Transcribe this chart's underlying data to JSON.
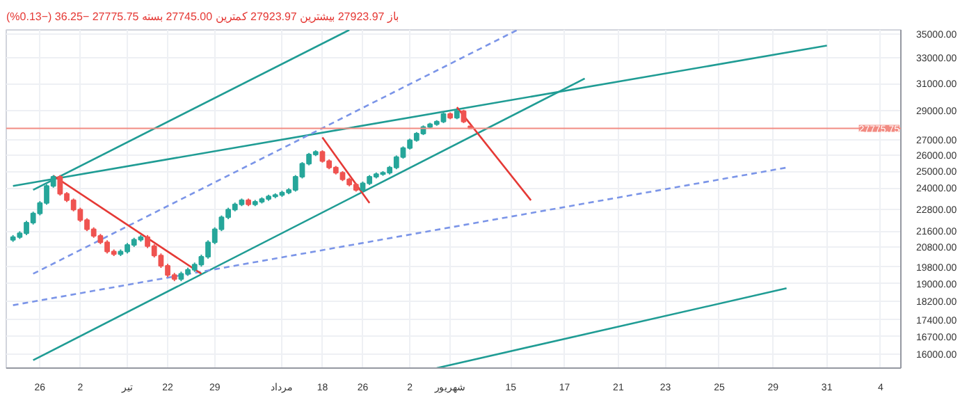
{
  "chart_data": {
    "type": "candlestick",
    "annotations": [
      "باز 27923.97 بیشترین 27923.97 کمترین 27745.00 بسته 27775.75 −36.25 (−0.13%)"
    ],
    "categories": [
      null,
      null,
      null,
      null,
      "26",
      null,
      null,
      null,
      null,
      null,
      "2",
      null,
      null,
      null,
      null,
      null,
      null,
      "تیر",
      null,
      null,
      null,
      null,
      null,
      "22",
      null,
      null,
      null,
      null,
      null,
      null,
      "29",
      null,
      null,
      null,
      null,
      null,
      null,
      null,
      null,
      null,
      "مرداد",
      null,
      null,
      null,
      null,
      null,
      "18",
      null,
      null,
      null,
      null,
      null,
      "26",
      null,
      null,
      null,
      null,
      null,
      null,
      "2",
      null,
      null,
      null,
      null,
      null,
      "شهریور",
      null,
      null,
      null,
      null,
      null,
      null,
      null,
      null,
      "15",
      null,
      null,
      null,
      null,
      null,
      null,
      null,
      "17",
      null,
      null,
      null,
      null,
      null,
      null,
      null,
      "21",
      null,
      null,
      null,
      null,
      null,
      null,
      "23",
      null,
      null,
      null,
      null,
      null,
      null,
      null,
      "25",
      null,
      null,
      null,
      null,
      null,
      null,
      null,
      "29",
      null,
      null,
      null,
      null,
      null,
      null,
      null,
      "31",
      null,
      null,
      null,
      null,
      null,
      null,
      null,
      "4",
      null,
      null
    ],
    "ohlc": [
      [
        21150,
        21400,
        21050,
        21300
      ],
      [
        21300,
        21600,
        21200,
        21500
      ],
      [
        21500,
        22160,
        21400,
        22060
      ],
      [
        22060,
        22660,
        21960,
        22560
      ],
      [
        22560,
        23250,
        22460,
        23150
      ],
      [
        23150,
        24230,
        23050,
        24130
      ],
      [
        24130,
        24780,
        24030,
        24680
      ],
      [
        24680,
        24780,
        23570,
        23670
      ],
      [
        23670,
        23770,
        23200,
        23300
      ],
      [
        23300,
        23400,
        22680,
        22780
      ],
      [
        22780,
        22880,
        22100,
        22200
      ],
      [
        22200,
        22300,
        21610,
        21710
      ],
      [
        21710,
        21810,
        21260,
        21360
      ],
      [
        21360,
        21460,
        20930,
        21030
      ],
      [
        21030,
        21130,
        20460,
        20560
      ],
      [
        20560,
        20660,
        20330,
        20430
      ],
      [
        20430,
        20660,
        20330,
        20560
      ],
      [
        20560,
        20990,
        20460,
        20890
      ],
      [
        20890,
        21260,
        20790,
        21160
      ],
      [
        21160,
        21400,
        21060,
        21300
      ],
      [
        21300,
        21400,
        20730,
        20830
      ],
      [
        20830,
        20930,
        20260,
        20360
      ],
      [
        20360,
        20460,
        19750,
        19850
      ],
      [
        19850,
        19950,
        19310,
        19410
      ],
      [
        19410,
        19510,
        19120,
        19220
      ],
      [
        19220,
        19570,
        19120,
        19470
      ],
      [
        19470,
        19760,
        19370,
        19660
      ],
      [
        19660,
        20010,
        19560,
        19910
      ],
      [
        19910,
        20400,
        19810,
        20300
      ],
      [
        20300,
        21130,
        20200,
        21030
      ],
      [
        21030,
        21810,
        20930,
        21710
      ],
      [
        21710,
        22450,
        21610,
        22350
      ],
      [
        22350,
        22880,
        22250,
        22780
      ],
      [
        22780,
        23170,
        22680,
        23070
      ],
      [
        23070,
        23400,
        22970,
        23300
      ],
      [
        23300,
        23400,
        22970,
        23070
      ],
      [
        23070,
        23320,
        22970,
        23220
      ],
      [
        23220,
        23470,
        23120,
        23370
      ],
      [
        23370,
        23620,
        23270,
        23520
      ],
      [
        23520,
        23700,
        23420,
        23600
      ],
      [
        23600,
        23850,
        23500,
        23750
      ],
      [
        23750,
        24000,
        23650,
        23900
      ],
      [
        23900,
        24780,
        23800,
        24680
      ],
      [
        24680,
        25580,
        24580,
        25480
      ],
      [
        25480,
        26160,
        25380,
        26060
      ],
      [
        26060,
        26330,
        25960,
        26230
      ],
      [
        26230,
        26330,
        25550,
        25650
      ],
      [
        25650,
        25750,
        25140,
        25240
      ],
      [
        25240,
        25340,
        24820,
        24920
      ],
      [
        24920,
        25020,
        24420,
        24520
      ],
      [
        24520,
        24620,
        24110,
        24210
      ],
      [
        24210,
        24310,
        23800,
        23900
      ],
      [
        23900,
        24390,
        23800,
        24290
      ],
      [
        24290,
        24780,
        24190,
        24680
      ],
      [
        24680,
        24940,
        24580,
        24840
      ],
      [
        24840,
        25020,
        24740,
        24920
      ],
      [
        24920,
        25340,
        24820,
        25240
      ],
      [
        25240,
        26000,
        25140,
        25900
      ],
      [
        25900,
        26580,
        25800,
        26480
      ],
      [
        26480,
        27090,
        26380,
        26990
      ],
      [
        26990,
        27530,
        26890,
        27430
      ],
      [
        27430,
        27980,
        27330,
        27880
      ],
      [
        27880,
        28160,
        27780,
        28060
      ],
      [
        28060,
        28340,
        27960,
        28240
      ],
      [
        28240,
        28880,
        28140,
        28780
      ],
      [
        28780,
        28880,
        28410,
        28510
      ],
      [
        28510,
        29070,
        28410,
        28970
      ],
      [
        28970,
        29070,
        28140,
        28240
      ],
      [
        27923.97,
        27923.97,
        27745,
        27775.75
      ],
      null,
      null,
      null,
      null,
      null,
      null,
      null,
      null,
      null,
      null,
      null,
      null,
      null,
      null,
      null,
      null,
      null,
      null,
      null,
      null,
      null,
      null,
      null,
      null,
      null,
      null,
      null,
      null,
      null,
      null,
      null,
      null,
      null,
      null,
      null,
      null,
      null,
      null,
      null,
      null,
      null,
      null,
      null,
      null,
      null,
      null,
      null,
      null,
      null,
      null,
      null,
      null,
      null,
      null,
      null,
      null,
      null,
      null,
      null,
      null,
      null,
      null,
      null
    ],
    "colors": [
      "#26a69a",
      "#26a69a",
      "#26a69a",
      "#26a69a",
      "#26a69a",
      "#26a69a",
      "#26a69a",
      "#ef5350",
      "#ef5350",
      "#ef5350",
      "#ef5350",
      "#ef5350",
      "#ef5350",
      "#ef5350",
      "#ef5350",
      "#ef5350",
      "#26a69a",
      "#26a69a",
      "#26a69a",
      "#26a69a",
      "#ef5350",
      "#ef5350",
      "#ef5350",
      "#ef5350",
      "#ef5350",
      "#26a69a",
      "#26a69a",
      "#26a69a",
      "#26a69a",
      "#26a69a",
      "#26a69a",
      "#26a69a",
      "#26a69a",
      "#26a69a",
      "#26a69a",
      "#ef5350",
      "#26a69a",
      "#26a69a",
      "#26a69a",
      "#26a69a",
      "#26a69a",
      "#26a69a",
      "#26a69a",
      "#26a69a",
      "#26a69a",
      "#26a69a",
      "#ef5350",
      "#ef5350",
      "#ef5350",
      "#ef5350",
      "#ef5350",
      "#ef5350",
      "#26a69a",
      "#26a69a",
      "#26a69a",
      "#26a69a",
      "#26a69a",
      "#26a69a",
      "#26a69a",
      "#26a69a",
      "#26a69a",
      "#26a69a",
      "#26a69a",
      "#26a69a",
      "#26a69a",
      "#ef5350",
      "#26a69a",
      "#ef5350",
      "#ef5350",
      null,
      null,
      null,
      null,
      null,
      null,
      null,
      null,
      null,
      null,
      null,
      null,
      null,
      null,
      null,
      null,
      null,
      null,
      null,
      null,
      null,
      null,
      null,
      null,
      null,
      null,
      null,
      null,
      null,
      null,
      null,
      null,
      null,
      null,
      null,
      null,
      null,
      null,
      null,
      null,
      null,
      null,
      null,
      null,
      null,
      null,
      null,
      null,
      null,
      null,
      null,
      null,
      null,
      null,
      null,
      null,
      null,
      null,
      null,
      null,
      null,
      null,
      null
    ],
    "series": [
      {
        "type": "line",
        "color": "#1f9c94",
        "line_style": "solid",
        "values": [
          24130,
          null,
          null,
          null,
          null,
          null,
          null,
          null,
          null,
          null,
          null,
          null,
          null,
          null,
          null,
          null,
          null,
          null,
          null,
          null,
          null,
          null,
          null,
          null,
          null,
          null,
          null,
          null,
          null,
          null,
          null,
          null,
          null,
          null,
          null,
          null,
          null,
          null,
          null,
          null,
          null,
          null,
          null,
          null,
          null,
          null,
          null,
          null,
          null,
          null,
          null,
          null,
          null,
          null,
          null,
          null,
          null,
          null,
          null,
          null,
          null,
          null,
          null,
          null,
          null,
          null,
          null,
          null,
          null,
          null,
          null,
          null,
          null,
          null,
          null,
          null,
          null,
          null,
          null,
          null,
          null,
          null,
          null,
          null,
          null,
          null,
          null,
          null,
          null,
          null,
          null,
          null,
          null,
          null,
          null,
          null,
          null,
          null,
          null,
          null,
          null,
          null,
          null,
          null,
          null,
          null,
          null,
          null,
          null,
          null,
          null,
          null,
          null,
          null,
          null,
          null,
          null,
          null,
          null,
          null,
          null,
          34010,
          null,
          null,
          null,
          null,
          null,
          null,
          null,
          null,
          null,
          null
        ]
      },
      {
        "type": "line",
        "color": "#1f9c94",
        "line_style": "solid",
        "values": [
          null,
          null,
          null,
          23900,
          null,
          null,
          null,
          null,
          null,
          null,
          null,
          null,
          null,
          null,
          null,
          null,
          null,
          null,
          null,
          null,
          null,
          null,
          null,
          null,
          null,
          null,
          null,
          null,
          null,
          null,
          null,
          null,
          null,
          null,
          null,
          null,
          null,
          null,
          null,
          null,
          null,
          null,
          null,
          null,
          null,
          null,
          null,
          null,
          null,
          null,
          35340,
          null,
          null,
          null,
          null,
          null,
          null,
          null,
          null,
          null,
          null,
          null,
          null,
          null,
          null,
          null,
          null,
          null,
          null,
          null,
          null,
          null,
          null,
          null,
          null,
          null,
          null,
          null,
          null,
          null,
          null,
          null,
          null,
          null,
          null,
          null,
          null,
          null,
          null,
          null,
          null,
          null,
          null,
          null,
          null,
          null,
          null,
          null,
          null,
          null,
          null,
          null,
          null,
          null,
          null,
          null,
          null,
          null,
          null,
          null,
          null,
          null,
          null,
          null,
          null,
          null,
          null,
          null,
          null,
          null,
          null,
          null,
          null,
          null,
          null,
          null,
          null,
          null,
          null,
          null,
          null,
          null
        ]
      },
      {
        "type": "line",
        "color": "#1f9c94",
        "line_style": "solid",
        "values": [
          null,
          null,
          null,
          15760,
          null,
          null,
          null,
          null,
          null,
          null,
          null,
          null,
          null,
          null,
          null,
          null,
          null,
          null,
          null,
          null,
          null,
          null,
          null,
          null,
          null,
          null,
          null,
          null,
          null,
          null,
          null,
          null,
          null,
          null,
          null,
          null,
          null,
          null,
          null,
          null,
          null,
          null,
          null,
          null,
          null,
          null,
          null,
          null,
          null,
          null,
          null,
          null,
          null,
          null,
          null,
          null,
          null,
          null,
          null,
          null,
          null,
          null,
          null,
          null,
          null,
          null,
          null,
          null,
          null,
          null,
          null,
          null,
          null,
          null,
          null,
          null,
          null,
          null,
          null,
          null,
          null,
          null,
          null,
          null,
          null,
          31380,
          null,
          null,
          null,
          null,
          null,
          null,
          null,
          null,
          null,
          null,
          null,
          null,
          null,
          null,
          null,
          null,
          null,
          null,
          null,
          null,
          null,
          null,
          null,
          null,
          null,
          null,
          null,
          null,
          null,
          null,
          null,
          null,
          null,
          null,
          null,
          null,
          null,
          null,
          null,
          null,
          null,
          null,
          null,
          null,
          null,
          null
        ]
      },
      {
        "type": "line",
        "color": "#1f9c94",
        "line_style": "solid",
        "values": [
          null,
          null,
          null,
          null,
          null,
          null,
          null,
          null,
          null,
          null,
          null,
          null,
          null,
          null,
          null,
          null,
          null,
          null,
          null,
          null,
          null,
          null,
          null,
          null,
          null,
          null,
          null,
          null,
          null,
          null,
          null,
          null,
          null,
          null,
          null,
          null,
          null,
          null,
          null,
          null,
          null,
          null,
          null,
          null,
          null,
          null,
          null,
          null,
          null,
          null,
          null,
          null,
          null,
          null,
          null,
          null,
          null,
          null,
          null,
          null,
          null,
          null,
          null,
          15460,
          null,
          null,
          null,
          null,
          null,
          null,
          null,
          null,
          null,
          null,
          null,
          null,
          null,
          null,
          null,
          null,
          null,
          null,
          null,
          null,
          null,
          null,
          null,
          null,
          null,
          null,
          null,
          null,
          null,
          null,
          null,
          null,
          null,
          null,
          null,
          null,
          null,
          null,
          null,
          null,
          null,
          null,
          null,
          null,
          null,
          null,
          null,
          null,
          null,
          null,
          null,
          18790,
          null,
          null,
          null,
          null,
          null,
          null,
          null,
          null,
          null,
          null,
          null,
          null,
          null,
          null,
          null,
          null
        ]
      },
      {
        "type": "line",
        "color": "#7b95e8",
        "line_style": "dashed",
        "values": [
          null,
          null,
          null,
          19470,
          null,
          null,
          null,
          null,
          null,
          null,
          null,
          null,
          null,
          null,
          null,
          null,
          null,
          null,
          null,
          null,
          null,
          null,
          null,
          null,
          null,
          null,
          null,
          null,
          null,
          null,
          null,
          null,
          null,
          null,
          null,
          null,
          null,
          null,
          null,
          null,
          null,
          null,
          null,
          null,
          null,
          null,
          null,
          null,
          null,
          null,
          null,
          null,
          null,
          null,
          null,
          null,
          null,
          null,
          null,
          null,
          null,
          null,
          null,
          null,
          null,
          null,
          null,
          null,
          null,
          null,
          null,
          null,
          null,
          null,
          null,
          35340,
          null,
          null,
          null,
          null,
          null,
          null,
          null,
          null,
          null,
          null,
          null,
          null,
          null,
          null,
          null,
          null,
          null,
          null,
          null,
          null,
          null,
          null,
          null,
          null,
          null,
          null,
          null,
          null,
          null,
          null,
          null,
          null,
          null,
          null,
          null,
          null,
          null,
          null,
          null,
          null,
          null,
          null,
          null,
          null,
          null,
          null,
          null,
          null,
          null,
          null,
          null,
          null,
          null,
          null,
          null,
          null
        ]
      },
      {
        "type": "line",
        "color": "#7b95e8",
        "line_style": "dashed",
        "values": [
          18030,
          null,
          null,
          null,
          null,
          null,
          null,
          null,
          null,
          null,
          null,
          null,
          null,
          null,
          null,
          null,
          null,
          null,
          null,
          null,
          null,
          null,
          null,
          null,
          null,
          null,
          null,
          null,
          null,
          null,
          null,
          null,
          null,
          null,
          null,
          null,
          null,
          null,
          null,
          null,
          null,
          null,
          null,
          null,
          null,
          null,
          null,
          null,
          null,
          null,
          null,
          null,
          null,
          null,
          null,
          null,
          null,
          null,
          null,
          null,
          null,
          null,
          null,
          null,
          null,
          null,
          null,
          null,
          null,
          null,
          null,
          null,
          null,
          null,
          null,
          null,
          null,
          null,
          null,
          null,
          null,
          null,
          null,
          null,
          null,
          null,
          null,
          null,
          null,
          null,
          null,
          null,
          null,
          null,
          null,
          null,
          null,
          null,
          null,
          null,
          null,
          null,
          null,
          null,
          null,
          null,
          null,
          null,
          null,
          null,
          null,
          null,
          null,
          null,
          null,
          25240,
          null,
          null,
          null,
          null,
          null,
          null,
          null,
          null,
          null,
          null,
          null,
          null,
          null,
          null,
          null,
          null
        ]
      },
      {
        "type": "line",
        "color": "#e53935",
        "line_style": "solid",
        "values": [
          null,
          null,
          null,
          null,
          null,
          null,
          24740,
          null,
          null,
          null,
          null,
          null,
          null,
          null,
          null,
          null,
          null,
          null,
          null,
          null,
          null,
          null,
          null,
          null,
          null,
          null,
          null,
          null,
          19470,
          null,
          null,
          null,
          null,
          null,
          null,
          null,
          null,
          null,
          null,
          null,
          null,
          null,
          null,
          null,
          null,
          null,
          null,
          null,
          null,
          null,
          null,
          null,
          null,
          null,
          null,
          null,
          null,
          null,
          null,
          null,
          null,
          null,
          null,
          null,
          null,
          null,
          null,
          null,
          null,
          null,
          null,
          null,
          null,
          null,
          null,
          null,
          null,
          null,
          null,
          null,
          null,
          null,
          null,
          null,
          null,
          null,
          null,
          null,
          null,
          null,
          null,
          null,
          null,
          null,
          null,
          null,
          null,
          null,
          null,
          null,
          null,
          null,
          null,
          null,
          null,
          null,
          null,
          null,
          null,
          null,
          null,
          null,
          null,
          null,
          null,
          null,
          null,
          null,
          null,
          null,
          null,
          null,
          null,
          null,
          null,
          null,
          null,
          null,
          null,
          null,
          null,
          null
        ]
      },
      {
        "type": "line",
        "color": "#e53935",
        "line_style": "solid",
        "values": [
          null,
          null,
          null,
          null,
          null,
          null,
          null,
          null,
          null,
          null,
          null,
          null,
          null,
          null,
          null,
          null,
          null,
          null,
          null,
          null,
          null,
          null,
          null,
          null,
          null,
          null,
          null,
          null,
          null,
          null,
          null,
          null,
          null,
          null,
          null,
          null,
          null,
          null,
          null,
          null,
          null,
          null,
          null,
          null,
          null,
          null,
          27170,
          null,
          null,
          null,
          null,
          null,
          null,
          23150,
          null,
          null,
          null,
          null,
          null,
          null,
          null,
          null,
          null,
          null,
          null,
          null,
          null,
          null,
          null,
          null,
          null,
          null,
          null,
          null,
          null,
          null,
          null,
          null,
          null,
          null,
          null,
          null,
          null,
          null,
          null,
          null,
          null,
          null,
          null,
          null,
          null,
          null,
          null,
          null,
          null,
          null,
          null,
          null,
          null,
          null,
          null,
          null,
          null,
          null,
          null,
          null,
          null,
          null,
          null,
          null,
          null,
          null,
          null,
          null,
          null,
          null,
          null,
          null,
          null,
          null,
          null,
          null,
          null,
          null,
          null,
          null,
          null,
          null,
          null,
          null,
          null,
          null
        ]
      },
      {
        "type": "line",
        "color": "#e53935",
        "line_style": "solid",
        "values": [
          null,
          null,
          null,
          null,
          null,
          null,
          null,
          null,
          null,
          null,
          null,
          null,
          null,
          null,
          null,
          null,
          null,
          null,
          null,
          null,
          null,
          null,
          null,
          null,
          null,
          null,
          null,
          null,
          null,
          null,
          null,
          null,
          null,
          null,
          null,
          null,
          null,
          null,
          null,
          null,
          null,
          null,
          null,
          null,
          null,
          null,
          null,
          null,
          null,
          null,
          null,
          null,
          null,
          null,
          null,
          null,
          null,
          null,
          null,
          null,
          null,
          null,
          null,
          null,
          null,
          null,
          29250,
          null,
          null,
          null,
          null,
          null,
          null,
          null,
          null,
          null,
          null,
          23300,
          null,
          null,
          null,
          null,
          null,
          null,
          null,
          null,
          null,
          null,
          null,
          null,
          null,
          null,
          null,
          null,
          null,
          null,
          null,
          null,
          null,
          null,
          null,
          null,
          null,
          null,
          null,
          null,
          null,
          null,
          null,
          null,
          null,
          null,
          null,
          null,
          null,
          null,
          null,
          null,
          null,
          null,
          null,
          null,
          null,
          null,
          null,
          null,
          null,
          null,
          null,
          null,
          null,
          null
        ]
      }
    ],
    "ref_lines": [
      {
        "axis": "y",
        "value": 27775.75,
        "label": "27775.75",
        "color": "#f28b82"
      }
    ],
    "log": true,
    "grid": true,
    "ylim": [
      15460,
      35340
    ],
    "yticks": [
      {
        "value": 35000,
        "label": "35000.00"
      },
      {
        "value": 33000,
        "label": "33000.00"
      },
      {
        "value": 31000,
        "label": "31000.00"
      },
      {
        "value": 29000,
        "label": "29000.00"
      },
      {
        "value": 27000,
        "label": "27000.00"
      },
      {
        "value": 26000,
        "label": "26000.00"
      },
      {
        "value": 25000,
        "label": "25000.00"
      },
      {
        "value": 24000,
        "label": "24000.00"
      },
      {
        "value": 22800,
        "label": "22800.00"
      },
      {
        "value": 21600,
        "label": "21600.00"
      },
      {
        "value": 20800,
        "label": "20800.00"
      },
      {
        "value": 19800,
        "label": "19800.00"
      },
      {
        "value": 19000,
        "label": "19000.00"
      },
      {
        "value": 18200,
        "label": "18200.00"
      },
      {
        "value": 17400,
        "label": "17400.00"
      },
      {
        "value": 16700,
        "label": "16700.00"
      },
      {
        "value": 16000,
        "label": "16000.00"
      }
    ]
  }
}
